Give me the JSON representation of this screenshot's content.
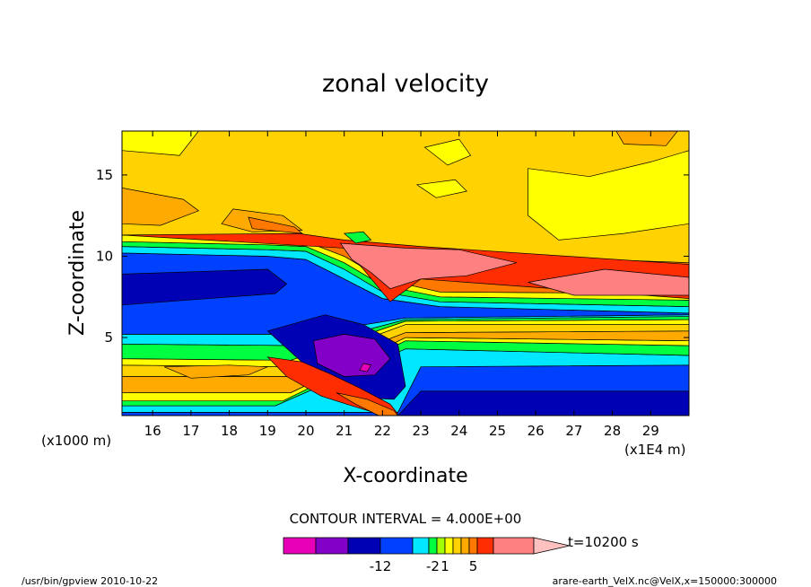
{
  "footer": {
    "left": "/usr/bin/gpview  2010-10-22",
    "right": "arare-earth_VelX.nc@VelX,x=150000:300000"
  },
  "chart_data": {
    "type": "heatmap",
    "title": "zonal velocity",
    "xlabel": "X-coordinate",
    "ylabel": "Z-coordinate",
    "x_unit_left": "(x1000 m)",
    "x_unit_right": "(x1E4 m)",
    "xlim": [
      15.2,
      30.0
    ],
    "ylim": [
      0.2,
      17.7
    ],
    "x_ticks": [
      16,
      17,
      18,
      19,
      20,
      21,
      22,
      23,
      24,
      25,
      26,
      27,
      28,
      29
    ],
    "y_ticks": [
      5,
      10,
      15
    ],
    "contour_interval_label": "CONTOUR INTERVAL = 4.000E+00",
    "time_label": "t=10200 s",
    "colorbar": {
      "colors": [
        "#e800b8",
        "#8200c8",
        "#0000b4",
        "#0040ff",
        "#00e8ff",
        "#00ff40",
        "#a0ff00",
        "#ffff00",
        "#ffd200",
        "#ffaa00",
        "#ff7800",
        "#ff2d00",
        "#ff8080",
        "#ffc0c0"
      ],
      "labels": [
        {
          "text": "-12",
          "boundary": 3
        },
        {
          "text": "-2",
          "boundary": 5.5
        },
        {
          "text": "1",
          "boundary": 7
        },
        {
          "text": "5",
          "boundary": 10.5
        }
      ]
    },
    "bands": [
      {
        "color": "#0000b4",
        "top": [
          [
            15.2,
            0.9
          ],
          [
            22.4,
            0.9
          ],
          [
            23.0,
            1.7
          ],
          [
            30.0,
            1.7
          ]
        ],
        "bottom": [
          [
            15.2,
            0.2
          ],
          [
            30.0,
            0.2
          ]
        ]
      },
      {
        "color": "#0040ff",
        "top": [
          [
            15.2,
            0.4
          ],
          [
            22.4,
            0.4
          ],
          [
            23.0,
            3.2
          ],
          [
            30.0,
            3.3
          ]
        ],
        "bottom": [
          [
            15.2,
            0.2
          ],
          [
            22.4,
            0.2
          ],
          [
            23.0,
            1.7
          ],
          [
            30.0,
            1.7
          ]
        ]
      },
      {
        "color": "#00e8ff",
        "top": [
          [
            15.2,
            0.8
          ],
          [
            19.2,
            0.8
          ],
          [
            22.6,
            4.3
          ],
          [
            30.0,
            3.9
          ]
        ],
        "bottom": [
          [
            15.2,
            0.4
          ],
          [
            22.4,
            0.4
          ],
          [
            23.0,
            3.2
          ],
          [
            30.0,
            3.3
          ]
        ]
      },
      {
        "color": "#00ff40",
        "top": [
          [
            15.2,
            1.1
          ],
          [
            19.4,
            1.1
          ],
          [
            22.6,
            4.8
          ],
          [
            30.0,
            4.5
          ]
        ],
        "bottom": [
          [
            15.2,
            0.8
          ],
          [
            19.2,
            0.8
          ],
          [
            22.6,
            4.3
          ],
          [
            30.0,
            3.9
          ]
        ]
      },
      {
        "color": "#ffff00",
        "top": [
          [
            15.2,
            1.6
          ],
          [
            19.6,
            1.6
          ],
          [
            22.6,
            5.0
          ],
          [
            30.0,
            4.8
          ]
        ],
        "bottom": [
          [
            15.2,
            1.1
          ],
          [
            19.4,
            1.1
          ],
          [
            22.6,
            4.8
          ],
          [
            30.0,
            4.5
          ]
        ]
      },
      {
        "color": "#ffaa00",
        "top": [
          [
            15.2,
            2.6
          ],
          [
            19.6,
            2.6
          ],
          [
            22.6,
            5.3
          ],
          [
            30.0,
            5.4
          ]
        ],
        "bottom": [
          [
            15.2,
            1.6
          ],
          [
            19.6,
            1.6
          ],
          [
            22.6,
            5.0
          ],
          [
            30.0,
            4.8
          ]
        ]
      },
      {
        "color": "#ffd200",
        "top": [
          [
            15.2,
            3.3
          ],
          [
            19.6,
            3.2
          ],
          [
            22.6,
            5.8
          ],
          [
            30.0,
            5.8
          ]
        ],
        "bottom": [
          [
            15.2,
            2.6
          ],
          [
            19.6,
            2.6
          ],
          [
            22.6,
            5.3
          ],
          [
            30.0,
            5.4
          ]
        ]
      },
      {
        "color": "#ffff00",
        "top": [
          [
            15.2,
            3.7
          ],
          [
            19.6,
            3.6
          ],
          [
            22.6,
            6.0
          ],
          [
            30.0,
            6.1
          ]
        ],
        "bottom": [
          [
            15.2,
            3.3
          ],
          [
            19.6,
            3.2
          ],
          [
            22.6,
            5.8
          ],
          [
            30.0,
            5.8
          ]
        ]
      },
      {
        "color": "#00ff40",
        "top": [
          [
            15.2,
            4.6
          ],
          [
            20.0,
            4.5
          ],
          [
            22.6,
            6.1
          ],
          [
            30.0,
            6.3
          ]
        ],
        "bottom": [
          [
            15.2,
            3.7
          ],
          [
            19.6,
            3.6
          ],
          [
            22.6,
            6.0
          ],
          [
            30.0,
            6.1
          ]
        ]
      },
      {
        "color": "#00e8ff",
        "top": [
          [
            15.2,
            5.2
          ],
          [
            20.0,
            5.2
          ],
          [
            22.6,
            6.2
          ],
          [
            30.0,
            6.4
          ]
        ],
        "bottom": [
          [
            15.2,
            4.6
          ],
          [
            20.0,
            4.5
          ],
          [
            22.6,
            6.1
          ],
          [
            30.0,
            6.3
          ]
        ]
      },
      {
        "color": "#0040ff",
        "top": [
          [
            15.2,
            10.2
          ],
          [
            19.0,
            10.0
          ],
          [
            20.0,
            9.8
          ],
          [
            21.0,
            8.6
          ],
          [
            22.0,
            7.4
          ],
          [
            23.5,
            6.9
          ],
          [
            30.0,
            6.5
          ]
        ],
        "bottom": [
          [
            15.2,
            5.2
          ],
          [
            20.0,
            5.2
          ],
          [
            22.6,
            6.2
          ],
          [
            30.0,
            6.4
          ]
        ]
      },
      {
        "color": "#00e8ff",
        "top": [
          [
            15.2,
            10.6
          ],
          [
            19.0,
            10.4
          ],
          [
            20.0,
            10.3
          ],
          [
            21.0,
            9.2
          ],
          [
            22.0,
            7.8
          ],
          [
            23.5,
            7.2
          ],
          [
            30.0,
            6.9
          ]
        ],
        "bottom": [
          [
            15.2,
            10.2
          ],
          [
            19.0,
            10.0
          ],
          [
            20.0,
            9.8
          ],
          [
            21.0,
            8.6
          ],
          [
            22.0,
            7.4
          ],
          [
            23.5,
            6.9
          ],
          [
            30.0,
            6.5
          ]
        ]
      },
      {
        "color": "#00ff40",
        "top": [
          [
            15.2,
            10.9
          ],
          [
            19.0,
            10.7
          ],
          [
            20.0,
            10.6
          ],
          [
            21.0,
            9.6
          ],
          [
            22.0,
            8.2
          ],
          [
            23.5,
            7.5
          ],
          [
            30.0,
            7.3
          ]
        ],
        "bottom": [
          [
            15.2,
            10.6
          ],
          [
            19.0,
            10.4
          ],
          [
            20.0,
            10.3
          ],
          [
            21.0,
            9.2
          ],
          [
            22.0,
            7.8
          ],
          [
            23.5,
            7.2
          ],
          [
            30.0,
            6.9
          ]
        ]
      },
      {
        "color": "#ffff00",
        "top": [
          [
            15.2,
            11.3
          ],
          [
            19.0,
            11.1
          ],
          [
            20.0,
            10.9
          ],
          [
            21.0,
            10.0
          ],
          [
            22.0,
            8.6
          ],
          [
            23.5,
            7.8
          ],
          [
            30.0,
            7.7
          ]
        ],
        "bottom": [
          [
            15.2,
            10.9
          ],
          [
            19.0,
            10.7
          ],
          [
            20.0,
            10.6
          ],
          [
            21.0,
            9.6
          ],
          [
            22.0,
            8.2
          ],
          [
            23.5,
            7.5
          ],
          [
            30.0,
            7.3
          ]
        ]
      },
      {
        "color": "#ff7800",
        "top": [
          [
            15.2,
            11.3
          ],
          [
            19.8,
            11.2
          ],
          [
            21.0,
            10.5
          ],
          [
            22.0,
            9.8
          ],
          [
            23.0,
            10.2
          ],
          [
            30.0,
            9.6
          ]
        ],
        "bottom": [
          [
            15.2,
            11.3
          ],
          [
            19.0,
            11.1
          ],
          [
            20.0,
            10.9
          ],
          [
            21.0,
            10.0
          ],
          [
            22.0,
            8.6
          ],
          [
            23.5,
            7.8
          ],
          [
            30.0,
            7.7
          ]
        ]
      },
      {
        "color": "#ff2d00",
        "top": [
          [
            15.2,
            11.3
          ],
          [
            19.8,
            11.4
          ],
          [
            21.0,
            11.0
          ],
          [
            22.0,
            10.8
          ],
          [
            23.0,
            10.6
          ],
          [
            30.0,
            9.5
          ]
        ],
        "bottom": [
          [
            15.2,
            11.3
          ],
          [
            21.0,
            10.5
          ],
          [
            21.5,
            9.2
          ],
          [
            22.2,
            7.2
          ],
          [
            23.0,
            8.6
          ],
          [
            30.0,
            7.4
          ]
        ]
      }
    ],
    "blobs": [
      {
        "color": "#0000b4",
        "points": [
          [
            15.2,
            8.9
          ],
          [
            19.0,
            9.2
          ],
          [
            19.5,
            8.3
          ],
          [
            19.2,
            7.7
          ],
          [
            15.2,
            7.0
          ]
        ]
      },
      {
        "color": "#0000b4",
        "points": [
          [
            19.0,
            5.4
          ],
          [
            20.5,
            6.4
          ],
          [
            21.5,
            5.8
          ],
          [
            22.4,
            4.6
          ],
          [
            22.6,
            2.0
          ],
          [
            22.3,
            1.2
          ],
          [
            21.5,
            1.3
          ],
          [
            20.5,
            2.2
          ]
        ]
      },
      {
        "color": "#8200c8",
        "points": [
          [
            20.2,
            4.8
          ],
          [
            21.0,
            5.2
          ],
          [
            21.8,
            4.9
          ],
          [
            22.2,
            3.7
          ],
          [
            21.8,
            2.7
          ],
          [
            21.0,
            2.6
          ],
          [
            20.3,
            3.4
          ]
        ]
      },
      {
        "color": "#e800b8",
        "points": [
          [
            21.5,
            3.4
          ],
          [
            21.7,
            3.3
          ],
          [
            21.6,
            2.9
          ],
          [
            21.4,
            3.0
          ]
        ]
      },
      {
        "color": "#ff2d00",
        "points": [
          [
            19.0,
            3.8
          ],
          [
            19.9,
            3.5
          ],
          [
            20.6,
            2.8
          ],
          [
            21.4,
            1.9
          ],
          [
            22.2,
            0.9
          ],
          [
            22.4,
            0.3
          ],
          [
            21.9,
            0.3
          ],
          [
            21.2,
            0.8
          ],
          [
            20.4,
            1.4
          ],
          [
            19.5,
            2.6
          ]
        ]
      },
      {
        "color": "#ff7800",
        "points": [
          [
            20.8,
            1.6
          ],
          [
            21.6,
            1.2
          ],
          [
            22.3,
            0.5
          ],
          [
            22.4,
            0.2
          ],
          [
            21.9,
            0.2
          ],
          [
            21.3,
            0.9
          ]
        ]
      },
      {
        "color": "#ffaa00",
        "points": [
          [
            16.3,
            3.2
          ],
          [
            18.0,
            3.3
          ],
          [
            19.0,
            3.2
          ],
          [
            18.5,
            2.7
          ],
          [
            17.0,
            2.5
          ]
        ]
      },
      {
        "color": "#ffaa00",
        "points": [
          [
            15.2,
            14.2
          ],
          [
            16.8,
            13.5
          ],
          [
            17.2,
            12.8
          ],
          [
            16.2,
            11.9
          ],
          [
            15.2,
            12.0
          ]
        ]
      },
      {
        "color": "#ffaa00",
        "points": [
          [
            18.1,
            12.9
          ],
          [
            19.4,
            12.5
          ],
          [
            19.9,
            11.6
          ],
          [
            18.6,
            11.5
          ],
          [
            17.8,
            12.0
          ]
        ]
      },
      {
        "color": "#ff7800",
        "points": [
          [
            18.5,
            12.4
          ],
          [
            19.7,
            11.8
          ],
          [
            19.9,
            11.4
          ],
          [
            18.6,
            11.7
          ]
        ]
      },
      {
        "color": "#ffff00",
        "points": [
          [
            25.8,
            15.4
          ],
          [
            27.4,
            14.9
          ],
          [
            29.0,
            15.8
          ],
          [
            30.0,
            16.5
          ],
          [
            30.0,
            12.0
          ],
          [
            28.3,
            11.4
          ],
          [
            26.6,
            11.0
          ],
          [
            25.8,
            12.5
          ]
        ]
      },
      {
        "color": "#ffff00",
        "points": [
          [
            15.2,
            17.7
          ],
          [
            17.2,
            17.7
          ],
          [
            16.7,
            16.2
          ],
          [
            15.2,
            16.5
          ]
        ]
      },
      {
        "color": "#ffff00",
        "points": [
          [
            23.1,
            16.7
          ],
          [
            24.0,
            17.2
          ],
          [
            24.3,
            16.2
          ],
          [
            23.7,
            15.6
          ]
        ]
      },
      {
        "color": "#ffff00",
        "points": [
          [
            22.9,
            14.4
          ],
          [
            23.9,
            14.7
          ],
          [
            24.2,
            14.0
          ],
          [
            23.4,
            13.6
          ]
        ]
      },
      {
        "color": "#ffaa00",
        "points": [
          [
            28.1,
            17.7
          ],
          [
            29.7,
            17.7
          ],
          [
            29.4,
            16.8
          ],
          [
            28.3,
            16.9
          ]
        ]
      },
      {
        "color": "#ff8080",
        "points": [
          [
            20.9,
            10.8
          ],
          [
            22.6,
            10.5
          ],
          [
            24.0,
            10.4
          ],
          [
            25.5,
            9.6
          ],
          [
            24.2,
            8.8
          ],
          [
            23.0,
            8.6
          ],
          [
            22.2,
            8.0
          ],
          [
            21.7,
            9.0
          ],
          [
            21.2,
            9.8
          ]
        ]
      },
      {
        "color": "#ff8080",
        "points": [
          [
            25.8,
            8.4
          ],
          [
            27.8,
            9.2
          ],
          [
            30.0,
            8.7
          ],
          [
            30.0,
            7.6
          ],
          [
            27.0,
            7.6
          ]
        ]
      },
      {
        "color": "#00ff40",
        "points": [
          [
            21.0,
            11.4
          ],
          [
            21.5,
            11.5
          ],
          [
            21.7,
            11.0
          ],
          [
            21.3,
            10.8
          ]
        ]
      }
    ]
  }
}
